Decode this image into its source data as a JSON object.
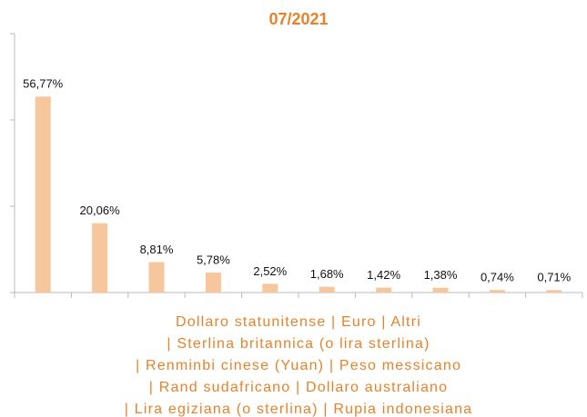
{
  "chart_data": {
    "type": "bar",
    "title": "07/2021",
    "categories": [
      null,
      null,
      null,
      null,
      null,
      null,
      null,
      null,
      null,
      null
    ],
    "values": [
      56.77,
      20.06,
      8.81,
      5.78,
      2.52,
      1.68,
      1.42,
      1.38,
      0.74,
      0.71
    ],
    "value_labels": [
      "56,77%",
      "20,06%",
      "8,81%",
      "5,78%",
      "2,52%",
      "1,68%",
      "1,42%",
      "1,38%",
      "0,74%",
      "0,71%"
    ],
    "color": "#f6c69c",
    "ylim": [
      0,
      75
    ],
    "yticks": [
      0,
      25,
      50,
      75
    ],
    "grid": false,
    "xlabel_lines": [
      "Dollaro statunitense | Euro | Altri",
      "| Sterlina britannica (o lira sterlina)",
      "| Renminbi cinese (Yuan) | Peso messicano",
      "| Rand sudafricano | Dollaro australiano",
      "| Lira egiziana (o sterlina) | Rupia indonesiana"
    ]
  }
}
